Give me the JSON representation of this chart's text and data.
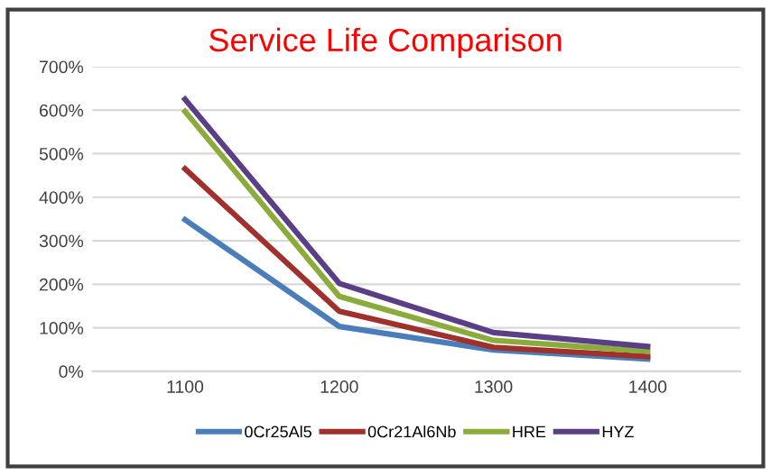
{
  "chart_data": {
    "type": "line",
    "title": "Service Life Comparison",
    "categories": [
      "1100",
      "1200",
      "1300",
      "1400"
    ],
    "series": [
      {
        "name": "0Cr25Al5",
        "color": "#4a7ebb",
        "values": [
          348,
          103,
          49,
          28
        ]
      },
      {
        "name": "0Cr21Al6Nb",
        "color": "#a0302c",
        "values": [
          465,
          138,
          55,
          34
        ]
      },
      {
        "name": "HRE",
        "color": "#8bab3a",
        "values": [
          597,
          172,
          71,
          46
        ]
      },
      {
        "name": "HYZ",
        "color": "#5b3f86",
        "values": [
          625,
          202,
          89,
          57
        ]
      }
    ],
    "ylim": [
      0,
      700
    ],
    "yticks": [
      {
        "value": 0,
        "label": "0%"
      },
      {
        "value": 100,
        "label": "100%"
      },
      {
        "value": 200,
        "label": "200%"
      },
      {
        "value": 300,
        "label": "300%"
      },
      {
        "value": 400,
        "label": "400%"
      },
      {
        "value": 500,
        "label": "500%"
      },
      {
        "value": 600,
        "label": "600%"
      },
      {
        "value": 700,
        "label": "700%"
      }
    ],
    "grid": "y",
    "legend": "bottom",
    "marker": "none",
    "line_style": "solid"
  }
}
